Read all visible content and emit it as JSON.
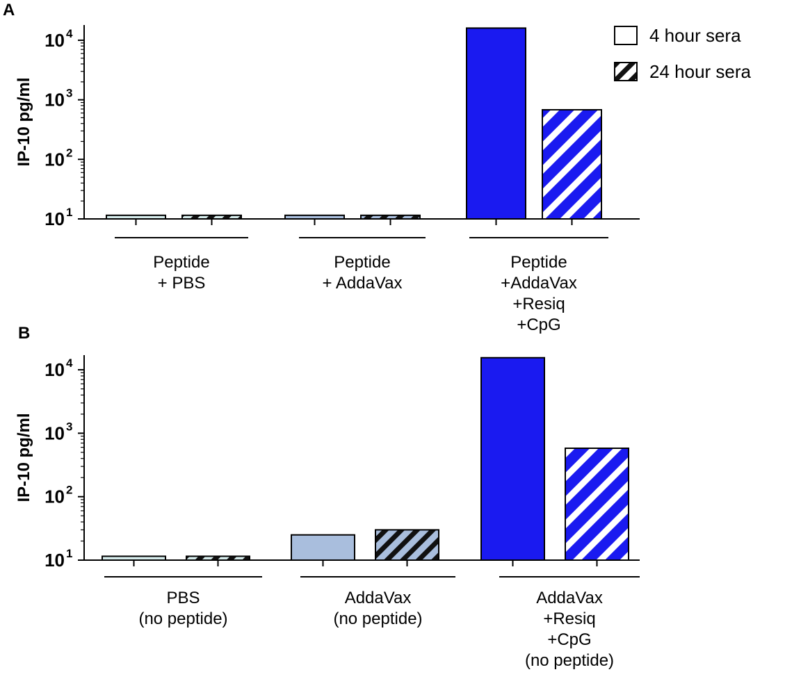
{
  "legend": {
    "entries": [
      {
        "label": "4 hour sera",
        "pattern": "solid"
      },
      {
        "label": "24 hour sera",
        "pattern": "hatched"
      }
    ]
  },
  "colors": {
    "bright_blue": "#1a1af0",
    "light_blue": "#a9bedd",
    "pale_cyan": "#d6ecec",
    "axis": "#000000"
  },
  "chart_data": [
    {
      "panel": "A",
      "type": "bar",
      "yscale": "log",
      "ylabel": "IP-10 pg/ml",
      "ylim": [
        10,
        20000
      ],
      "yticks": [
        {
          "base": "10",
          "exp": "1",
          "value": 10
        },
        {
          "base": "10",
          "exp": "2",
          "value": 100
        },
        {
          "base": "10",
          "exp": "3",
          "value": 1000
        },
        {
          "base": "10",
          "exp": "4",
          "value": 10000
        }
      ],
      "groups": [
        {
          "label_lines": [
            "Peptide",
            "+ PBS"
          ],
          "color": "pale_cyan",
          "values": {
            "4 hour sera": 11.5,
            "24 hour sera": 11.5
          }
        },
        {
          "label_lines": [
            "Peptide",
            "+ AddaVax"
          ],
          "color": "light_blue",
          "values": {
            "4 hour sera": 11.5,
            "24 hour sera": 11.5
          }
        },
        {
          "label_lines": [
            "Peptide",
            "+AddaVax",
            "+Resiq",
            "+CpG"
          ],
          "color": "bright_blue",
          "values": {
            "4 hour sera": 16000,
            "24 hour sera": 680
          }
        }
      ]
    },
    {
      "panel": "B",
      "type": "bar",
      "yscale": "log",
      "ylabel": "IP-10 pg/ml",
      "ylim": [
        10,
        20000
      ],
      "yticks": [
        {
          "base": "10",
          "exp": "1",
          "value": 10
        },
        {
          "base": "10",
          "exp": "2",
          "value": 100
        },
        {
          "base": "10",
          "exp": "3",
          "value": 1000
        },
        {
          "base": "10",
          "exp": "4",
          "value": 10000
        }
      ],
      "groups": [
        {
          "label_lines": [
            "PBS",
            "(no peptide)"
          ],
          "color": "pale_cyan",
          "values": {
            "4 hour sera": 11.5,
            "24 hour sera": 11.5
          }
        },
        {
          "label_lines": [
            "AddaVax",
            "(no peptide)"
          ],
          "color": "light_blue",
          "values": {
            "4 hour sera": 25,
            "24 hour sera": 30
          }
        },
        {
          "label_lines": [
            "AddaVax",
            "+Resiq",
            "+CpG",
            "(no peptide)"
          ],
          "color": "bright_blue",
          "values": {
            "4 hour sera": 15500,
            "24 hour sera": 580
          }
        }
      ]
    }
  ]
}
